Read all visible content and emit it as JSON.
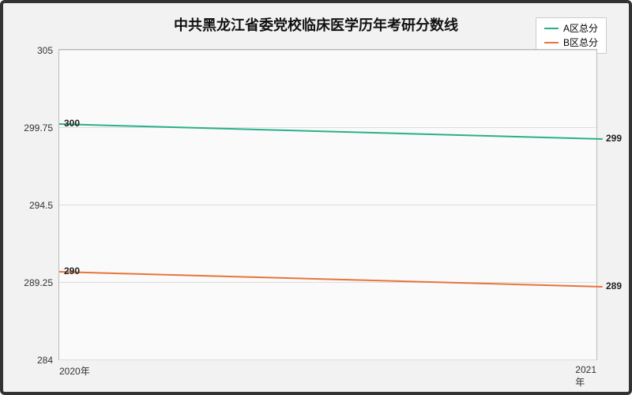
{
  "chart": {
    "type": "line",
    "title": "中共黑龙江省委党校临床医学历年考研分数线",
    "title_fontsize": 18,
    "background_color": "#f2f2f2",
    "plot_background": "#fafafa",
    "border_color": "#333333",
    "grid_color": "#dddddd",
    "axis_color": "#bbbbbb",
    "label_fontsize": 12,
    "x": {
      "categories": [
        "2020年",
        "2021年"
      ]
    },
    "y": {
      "min": 284,
      "max": 305,
      "ticks": [
        284,
        289.25,
        294.5,
        299.75,
        305
      ]
    },
    "series": [
      {
        "name": "A区总分",
        "color": "#29b08b",
        "values": [
          300,
          299
        ],
        "line_width": 2
      },
      {
        "name": "B区总分",
        "color": "#e8743b",
        "values": [
          290,
          289
        ],
        "line_width": 2
      }
    ],
    "legend": {
      "position": "top-right",
      "background": "#ffffff",
      "border": "#cccccc"
    }
  }
}
